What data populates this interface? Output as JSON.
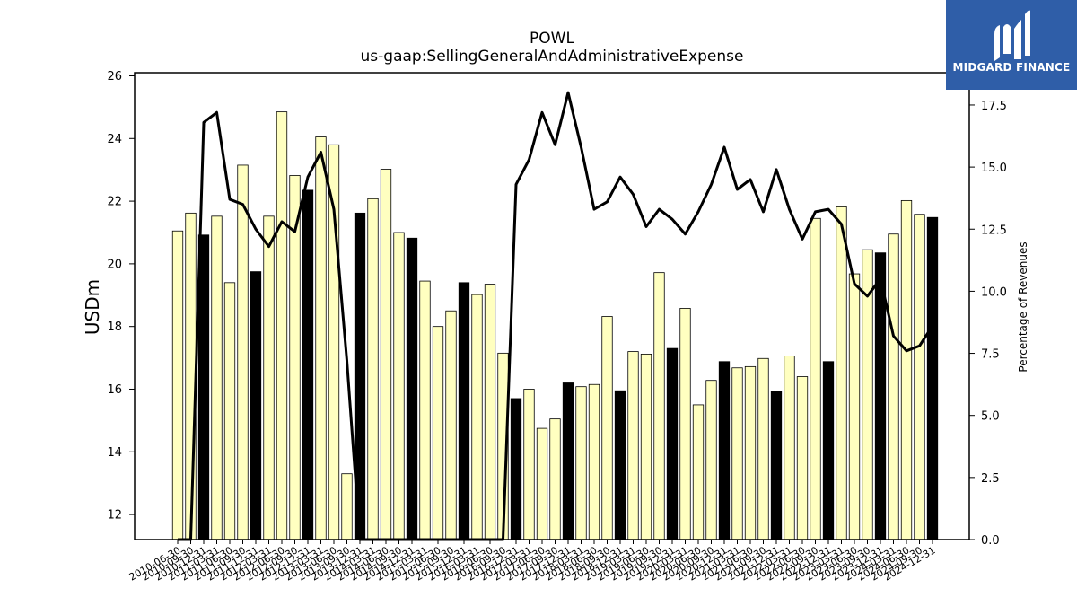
{
  "chart_data": {
    "type": "bar",
    "title": "POWL",
    "subtitle": "us-gaap:SellingGeneralAndAdministrativeExpense",
    "ylabel": "USDm",
    "y2label": "Percentage of Revenues",
    "ylim": [
      11.2,
      26.1
    ],
    "y2lim": [
      0,
      18.8
    ],
    "yticks": [
      12,
      14,
      16,
      18,
      20,
      22,
      24,
      26
    ],
    "y2ticks": [
      0.0,
      2.5,
      5.0,
      7.5,
      10.0,
      12.5,
      15.0,
      17.5
    ],
    "x_labels_visible": [
      "2010-06-30",
      "2010-09-30",
      "2010-12-31",
      "2011-03-31",
      "2011-06-30",
      "2011-09-30",
      "2011-12-31",
      "2012-03-31",
      "2012-06-30",
      "2012-09-30",
      "2012-12-31",
      "2013-03-31",
      "2013-06-30",
      "2013-09-30",
      "2013-12-31",
      "2014-03-31",
      "2014-06-30",
      "2014-09-30",
      "2014-12-31",
      "2015-03-31",
      "2015-06-30",
      "2015-09-30",
      "2015-12-31",
      "2016-03-31",
      "2016-06-30",
      "2016-09-30",
      "2016-12-31",
      "2017-03-31",
      "2017-06-30",
      "2017-09-30",
      "2017-12-31",
      "2018-03-31",
      "2018-06-30",
      "2018-09-30",
      "2018-12-31",
      "2019-03-31",
      "2019-06-30",
      "2019-09-30",
      "2019-12-31",
      "2020-03-31",
      "2020-06-30",
      "2020-09-30",
      "2020-12-31",
      "2021-03-31",
      "2021-06-30",
      "2021-09-30",
      "2021-12-31",
      "2022-03-31",
      "2022-06-30",
      "2022-09-30",
      "2022-12-31",
      "2023-03-31",
      "2023-06-30",
      "2023-09-30",
      "2023-12-31",
      "2024-03-31",
      "2024-06-30",
      "2024-09-30",
      "2024-12-31"
    ],
    "series": [
      {
        "name": "",
        "kind": "bar",
        "values": [
          21.05,
          21.62,
          20.92,
          21.52,
          19.4,
          23.15,
          19.75,
          21.52,
          24.85,
          22.82,
          22.35,
          24.05,
          23.8,
          13.3,
          21.62,
          22.08,
          23.02,
          21.0,
          20.82,
          19.45,
          18.0,
          18.5,
          19.4,
          19.02,
          19.35,
          17.15,
          15.7,
          16.0,
          14.75,
          15.05,
          16.2,
          16.08,
          16.15,
          18.32,
          15.95,
          17.2,
          17.12,
          19.72,
          17.3,
          18.58,
          15.5,
          16.28,
          16.88,
          16.68,
          16.72,
          16.98,
          15.92,
          17.06,
          16.4,
          21.45,
          16.88,
          21.82,
          19.68,
          20.45,
          20.35,
          20.95,
          22.02,
          21.58,
          21.48
        ],
        "annual_flags": [
          0,
          0,
          1,
          0,
          0,
          0,
          1,
          0,
          0,
          0,
          1,
          0,
          0,
          0,
          1,
          0,
          0,
          0,
          1,
          0,
          0,
          0,
          1,
          0,
          0,
          0,
          1,
          0,
          0,
          0,
          1,
          0,
          0,
          0,
          1,
          0,
          0,
          0,
          1,
          0,
          0,
          0,
          1,
          0,
          0,
          0,
          1,
          0,
          0,
          0,
          1,
          0,
          0,
          0,
          1,
          0,
          0,
          0,
          1
        ]
      },
      {
        "name": "",
        "kind": "line",
        "axis": "right",
        "values": [
          0.0,
          0.0,
          16.8,
          17.2,
          13.7,
          13.5,
          12.5,
          11.8,
          12.8,
          12.4,
          14.6,
          15.6,
          13.3,
          7.2,
          0.0,
          0.0,
          0.0,
          0.0,
          0.0,
          0.0,
          0.0,
          0.0,
          0.0,
          0.0,
          0.0,
          0.0,
          14.3,
          15.3,
          17.2,
          15.9,
          18.0,
          15.8,
          13.3,
          13.6,
          14.6,
          13.9,
          12.6,
          13.3,
          12.9,
          12.3,
          13.2,
          14.3,
          15.8,
          14.1,
          14.5,
          13.2,
          14.9,
          13.3,
          12.1,
          13.2,
          13.3,
          12.7,
          10.3,
          9.8,
          10.5,
          8.2,
          7.6,
          7.8,
          8.6
        ]
      }
    ],
    "colors": {
      "bar_quarter": "#ffffc0",
      "bar_annual": "#000000",
      "line": "#000000"
    },
    "grid": false,
    "legend": "none"
  },
  "logo": {
    "brand": "MIDGARD FINANCE"
  }
}
